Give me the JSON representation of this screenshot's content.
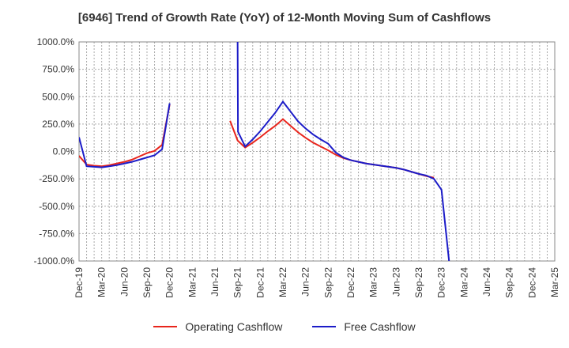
{
  "chart_data": {
    "type": "line",
    "title": "[6946]  Trend of Growth Rate (YoY) of 12-Month Moving Sum of Cashflows",
    "xlabel": "",
    "ylabel": "",
    "ylim": [
      -1000,
      1000
    ],
    "grid": true,
    "legend_position": "bottom",
    "y_ticks": [
      "1000.0%",
      "750.0%",
      "500.0%",
      "250.0%",
      "0.0%",
      "-250.0%",
      "-500.0%",
      "-750.0%",
      "-1000.0%"
    ],
    "y_tick_values": [
      1000,
      750,
      500,
      250,
      0,
      -250,
      -500,
      -750,
      -1000
    ],
    "x_ticks": [
      "Dec-19",
      "Mar-20",
      "Jun-20",
      "Sep-20",
      "Dec-20",
      "Mar-21",
      "Jun-21",
      "Sep-21",
      "Dec-21",
      "Mar-22",
      "Jun-22",
      "Sep-22",
      "Dec-22",
      "Mar-23",
      "Jun-23",
      "Sep-23",
      "Dec-23",
      "Mar-24",
      "Jun-24",
      "Sep-24",
      "Dec-24",
      "Mar-25"
    ],
    "series": [
      {
        "name": "Operating Cashflow",
        "color": "#e8251c",
        "values": [
          [
            0,
            -40
          ],
          [
            1,
            -120
          ],
          [
            2,
            -130
          ],
          [
            3,
            -135
          ],
          [
            4,
            -125
          ],
          [
            5,
            -110
          ],
          [
            6,
            -95
          ],
          [
            7,
            -75
          ],
          [
            8,
            -45
          ],
          [
            9,
            -15
          ],
          [
            10,
            5
          ],
          [
            11,
            60
          ],
          [
            12,
            430
          ],
          null,
          [
            20,
            280
          ],
          [
            21,
            100
          ],
          [
            22,
            35
          ],
          [
            23,
            80
          ],
          [
            24,
            130
          ],
          [
            25,
            185
          ],
          [
            26,
            235
          ],
          [
            27,
            295
          ],
          [
            28,
            235
          ],
          [
            29,
            175
          ],
          [
            30,
            125
          ],
          [
            31,
            80
          ],
          [
            32,
            45
          ],
          [
            33,
            10
          ],
          [
            34,
            -30
          ],
          [
            35,
            -60
          ],
          [
            36,
            -80
          ],
          [
            37,
            -95
          ],
          [
            38,
            -110
          ],
          [
            39,
            -120
          ],
          [
            40,
            -130
          ],
          [
            41,
            -140
          ],
          [
            42,
            -150
          ],
          [
            43,
            -165
          ],
          [
            44,
            -185
          ],
          [
            45,
            -205
          ],
          [
            46,
            -225
          ],
          [
            47,
            -240
          ]
        ]
      },
      {
        "name": "Free Cashflow",
        "color": "#1c1cc8",
        "values": [
          [
            0,
            130
          ],
          [
            1,
            -135
          ],
          [
            2,
            -140
          ],
          [
            3,
            -145
          ],
          [
            4,
            -135
          ],
          [
            5,
            -125
          ],
          [
            6,
            -110
          ],
          [
            7,
            -95
          ],
          [
            8,
            -75
          ],
          [
            9,
            -55
          ],
          [
            10,
            -35
          ],
          [
            11,
            20
          ],
          [
            12,
            440
          ],
          null,
          [
            21,
            1000
          ],
          [
            21.05,
            180
          ],
          [
            22,
            45
          ],
          [
            23,
            110
          ],
          [
            24,
            185
          ],
          [
            25,
            270
          ],
          [
            26,
            355
          ],
          [
            27,
            455
          ],
          [
            28,
            365
          ],
          [
            29,
            275
          ],
          [
            30,
            210
          ],
          [
            31,
            155
          ],
          [
            32,
            110
          ],
          [
            33,
            70
          ],
          [
            34,
            -10
          ],
          [
            35,
            -55
          ],
          [
            36,
            -80
          ],
          [
            37,
            -95
          ],
          [
            38,
            -110
          ],
          [
            39,
            -120
          ],
          [
            40,
            -130
          ],
          [
            41,
            -140
          ],
          [
            42,
            -150
          ],
          [
            43,
            -165
          ],
          [
            44,
            -185
          ],
          [
            45,
            -205
          ],
          [
            46,
            -220
          ],
          [
            47,
            -250
          ],
          [
            48,
            -350
          ],
          [
            49,
            -1000
          ]
        ]
      }
    ]
  }
}
